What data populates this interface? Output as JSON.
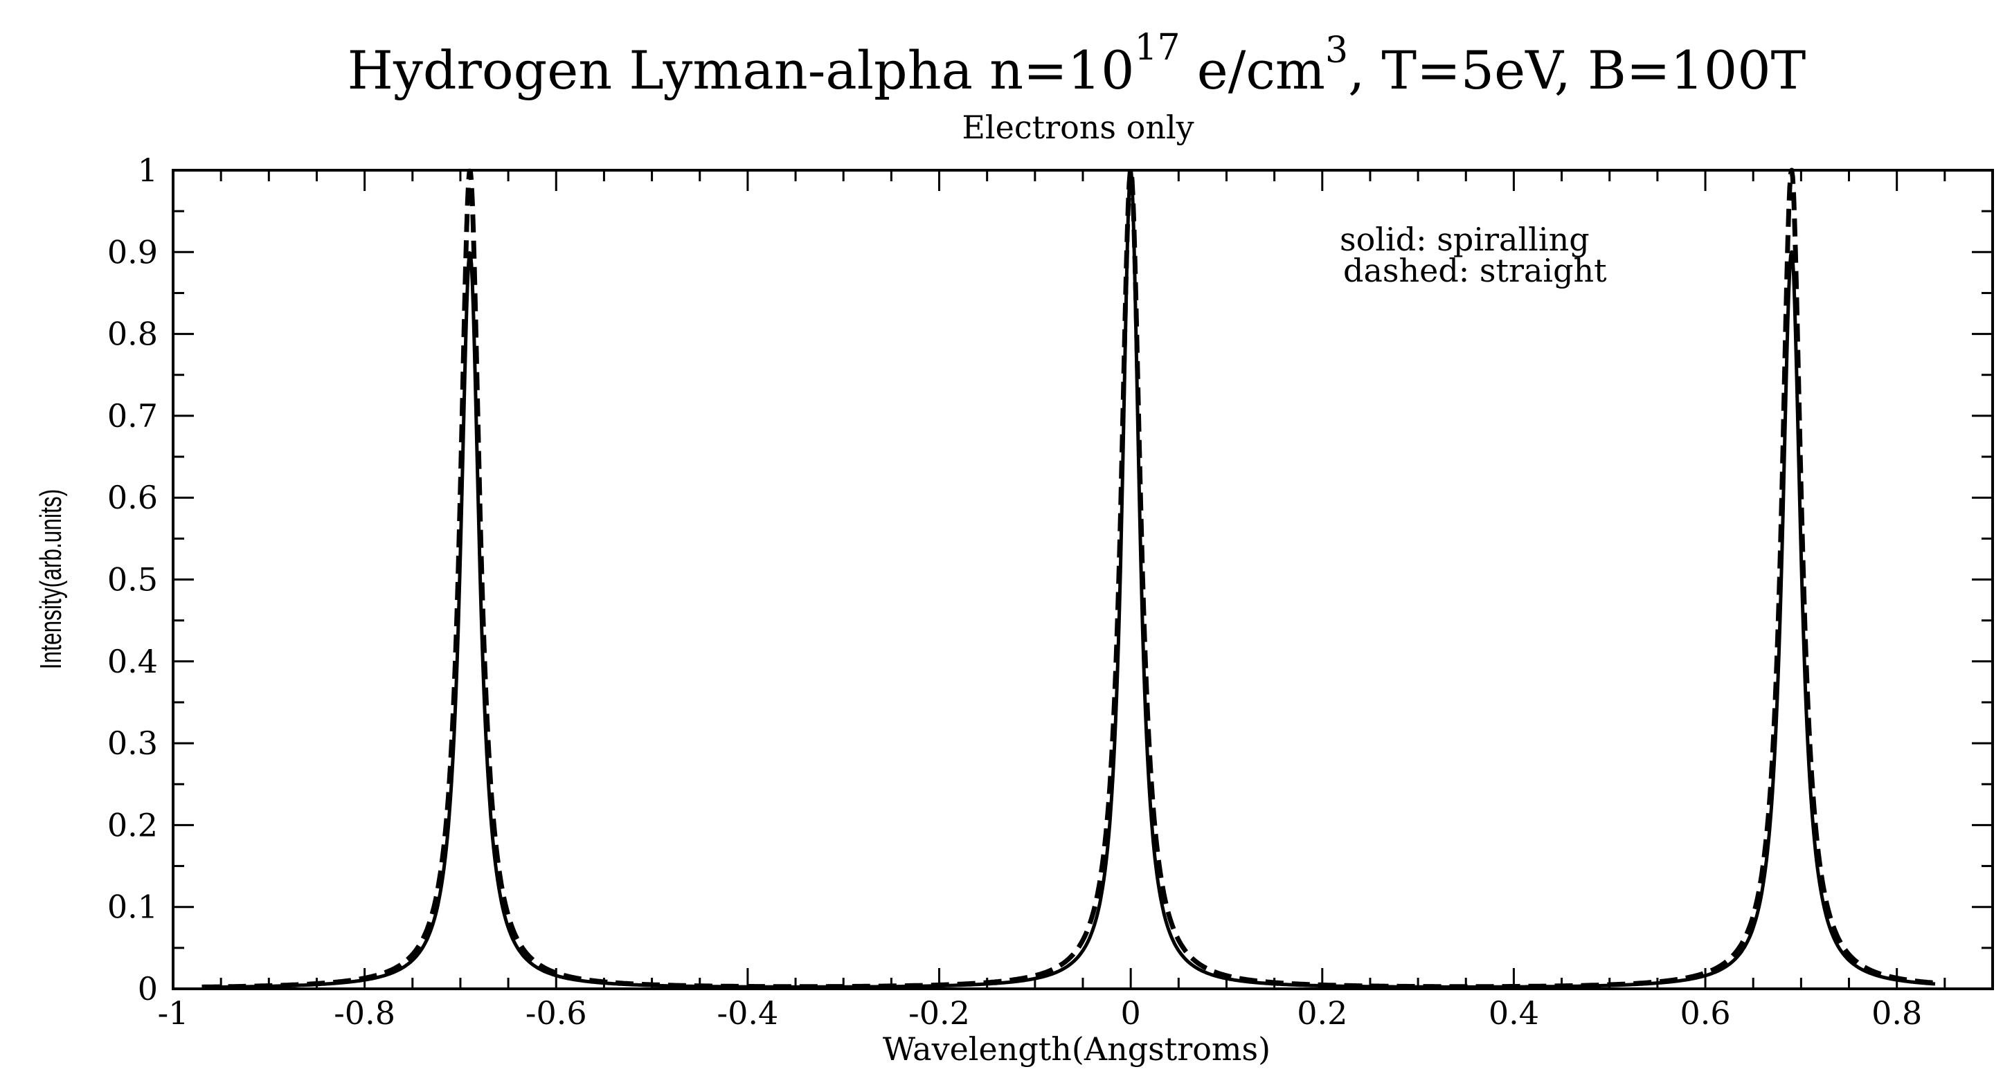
{
  "chart_data": {
    "type": "line",
    "title_main": "Hydrogen Lyman-alpha n=10",
    "title_exponent": "17",
    "title_unit": " e/cm",
    "title_unit_exponent": "3",
    "title_rest": ", T=5eV, B=100T",
    "subtitle": "Electrons only",
    "xlabel": "Wavelength(Angstroms)",
    "ylabel": "Intensity(arb.units)",
    "xlim": [
      -1.0,
      0.9
    ],
    "ylim": [
      0,
      1
    ],
    "x_ticks": [
      -1,
      -0.8,
      -0.6,
      -0.4,
      -0.2,
      0,
      0.2,
      0.4,
      0.6,
      0.8
    ],
    "x_tick_labels": [
      "-1",
      "-0.8",
      "-0.6",
      "-0.4",
      "-0.2",
      "0",
      "0.2",
      "0.4",
      "0.6",
      "0.8"
    ],
    "y_ticks": [
      0,
      0.1,
      0.2,
      0.3,
      0.4,
      0.5,
      0.6,
      0.7,
      0.8,
      0.9,
      1
    ],
    "y_tick_labels": [
      "0",
      "0.1",
      "0.2",
      "0.3",
      "0.4",
      "0.5",
      "0.6",
      "0.7",
      "0.8",
      "0.9",
      "1"
    ],
    "grid": false,
    "legend_position": "top-right",
    "legend": [
      "solid: spiralling",
      "dashed: straight"
    ],
    "x_range_data": [
      -0.97,
      0.84
    ],
    "series": [
      {
        "name": "spiralling",
        "style": "solid",
        "peaks": [
          {
            "center": -0.69,
            "height": 0.9,
            "hwhm": 0.012
          },
          {
            "center": 0.0,
            "height": 1.0,
            "hwhm": 0.011
          },
          {
            "center": 0.69,
            "height": 0.9,
            "hwhm": 0.012
          }
        ]
      },
      {
        "name": "straight",
        "style": "dashed",
        "peaks": [
          {
            "center": -0.69,
            "height": 1.0,
            "hwhm": 0.0125
          },
          {
            "center": 0.0,
            "height": 1.0,
            "hwhm": 0.0125
          },
          {
            "center": 0.69,
            "height": 1.0,
            "hwhm": 0.0125
          }
        ]
      }
    ]
  }
}
